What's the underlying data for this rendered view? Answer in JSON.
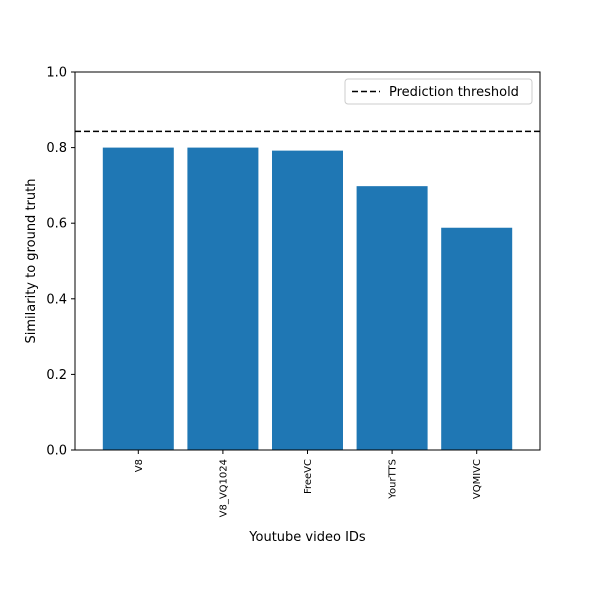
{
  "chart_data": {
    "type": "bar",
    "title": "",
    "xlabel": "Youtube video IDs",
    "ylabel": "Similarity to ground truth",
    "categories": [
      "V8",
      "V8_VQ1024",
      "FreeVC",
      "YourTTS",
      "VQMIVC"
    ],
    "values": [
      0.8,
      0.8,
      0.792,
      0.698,
      0.588
    ],
    "ylim": [
      0.0,
      1.0
    ],
    "yticks": [
      "0.0",
      "0.2",
      "0.4",
      "0.6",
      "0.8",
      "1.0"
    ],
    "grid": false,
    "bar_color": "#1f77b4",
    "threshold": {
      "value": 0.843,
      "label": "Prediction threshold",
      "color": "#000000",
      "style": "dashed"
    },
    "legend_placement": "top-right"
  }
}
